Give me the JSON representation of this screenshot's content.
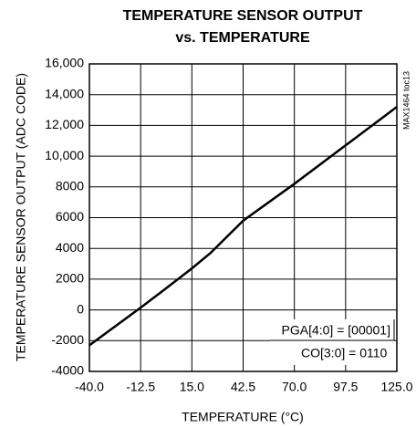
{
  "chart_data": {
    "type": "line",
    "title": [
      "TEMPERATURE SENSOR OUTPUT",
      "vs. TEMPERATURE"
    ],
    "x_label": "TEMPERATURE (°C)",
    "y_label": "TEMPERATURE SENSOR OUTPUT (ADC CODE)",
    "annotations": [
      "PGA[4:0] = [00001]",
      "CO[3:0] = 0110",
      "MAX1464 toc13"
    ],
    "x": [
      -40,
      -12.5,
      0,
      15,
      25,
      42.5,
      70,
      97.5,
      125
    ],
    "series": [
      {
        "name": "ADC code",
        "color": "#000000",
        "values": [
          -2300,
          150,
          1300,
          2700,
          3700,
          5800,
          8200,
          10700,
          13200
        ]
      }
    ],
    "xlim": [
      -40,
      125
    ],
    "xticks": [
      {
        "value": -40,
        "label": "-40.0"
      },
      -12.5,
      {
        "value": 15,
        "label": "15.0"
      },
      42.5,
      {
        "value": 70,
        "label": "70.0"
      },
      97.5,
      {
        "value": 125,
        "label": "125.0"
      }
    ],
    "ylim": [
      -4000,
      16000
    ],
    "yticks": [
      -4000,
      -2000,
      0,
      2000,
      4000,
      6000,
      8000,
      {
        "value": 10000,
        "label": "10,000"
      },
      {
        "value": 12000,
        "label": "12,000"
      },
      {
        "value": 14000,
        "label": "14,000"
      },
      {
        "value": 16000,
        "label": "16,000"
      }
    ],
    "grid": true
  }
}
